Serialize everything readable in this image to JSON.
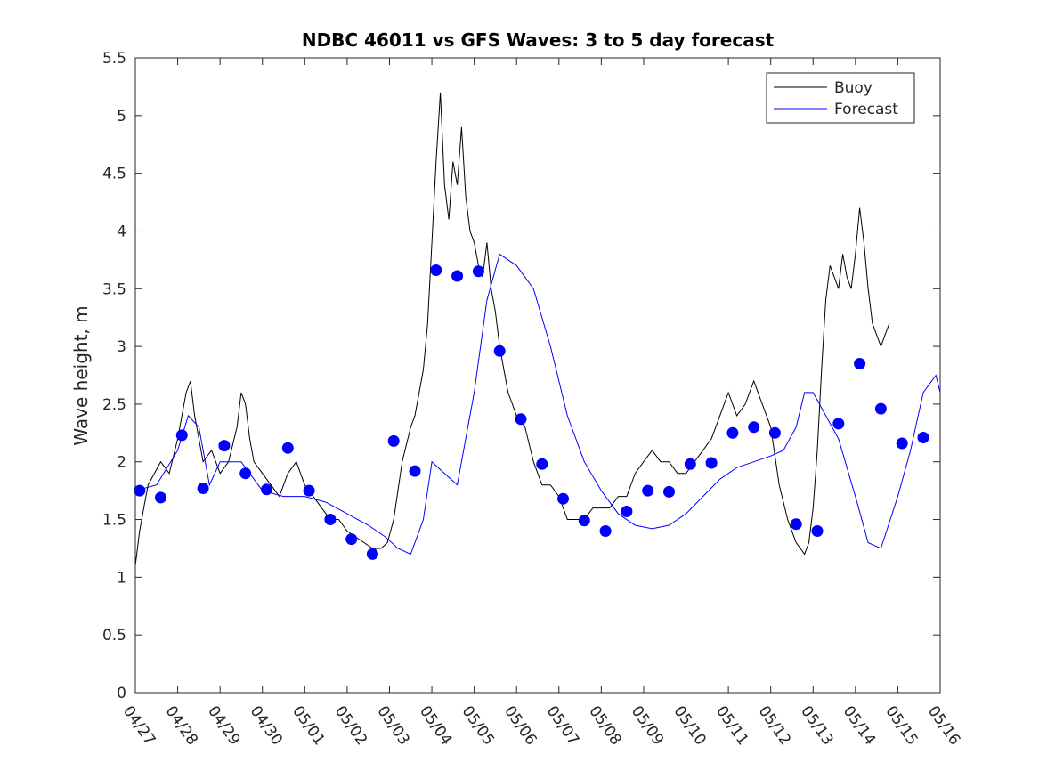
{
  "colors": {
    "buoy": "#000000",
    "forecast": "#0000ff",
    "axes": "#262626",
    "background": "#ffffff"
  },
  "chart_data": {
    "type": "line",
    "title": "NDBC 46011 vs GFS Waves: 3 to 5 day forecast",
    "xlabel": "",
    "ylabel": "Wave height, m",
    "xlim": [
      "04/27",
      "05/16"
    ],
    "ylim": [
      0,
      5.5
    ],
    "y_ticks": [
      "0",
      "0.5",
      "1",
      "1.5",
      "2",
      "2.5",
      "3",
      "3.5",
      "4",
      "4.5",
      "5",
      "5.5"
    ],
    "x_ticks": [
      "04/27",
      "04/28",
      "04/29",
      "04/30",
      "05/01",
      "05/02",
      "05/03",
      "05/04",
      "05/05",
      "05/06",
      "05/07",
      "05/08",
      "05/09",
      "05/10",
      "05/11",
      "05/12",
      "05/13",
      "05/14",
      "05/15",
      "05/16"
    ],
    "x_units": "days since 04/27 00:00",
    "grid": false,
    "legend": {
      "placement": "top-right",
      "entries": [
        "Buoy",
        "Forecast"
      ]
    },
    "series": [
      {
        "name": "Buoy",
        "style": "line",
        "x": [
          0,
          0.1,
          0.2,
          0.3,
          0.45,
          0.6,
          0.8,
          1.0,
          1.1,
          1.2,
          1.3,
          1.4,
          1.5,
          1.6,
          1.8,
          2.0,
          2.2,
          2.4,
          2.5,
          2.6,
          2.7,
          2.8,
          3.0,
          3.2,
          3.4,
          3.6,
          3.8,
          4.0,
          4.2,
          4.4,
          4.6,
          4.8,
          5.0,
          5.2,
          5.4,
          5.6,
          5.8,
          5.95,
          6.1,
          6.3,
          6.5,
          6.6,
          6.7,
          6.8,
          6.9,
          7.0,
          7.1,
          7.2,
          7.3,
          7.4,
          7.5,
          7.6,
          7.7,
          7.8,
          7.9,
          8.0,
          8.1,
          8.2,
          8.3,
          8.4,
          8.5,
          8.6,
          8.7,
          8.8,
          9.0,
          9.2,
          9.4,
          9.6,
          9.8,
          10.0,
          10.2,
          10.4,
          10.6,
          10.8,
          11.0,
          11.2,
          11.4,
          11.6,
          11.8,
          12.0,
          12.2,
          12.4,
          12.6,
          12.8,
          13.0,
          13.2,
          13.4,
          13.6,
          13.8,
          14.0,
          14.2,
          14.4,
          14.6,
          14.8,
          15.0,
          15.2,
          15.4,
          15.6,
          15.8,
          15.9,
          16.0,
          16.1,
          16.2,
          16.3,
          16.4,
          16.5,
          16.6,
          16.7,
          16.8,
          16.9,
          17.0,
          17.1,
          17.2,
          17.3,
          17.4,
          17.5,
          17.6,
          17.7,
          17.8
        ],
        "y": [
          1.1,
          1.4,
          1.6,
          1.8,
          1.9,
          2.0,
          1.9,
          2.2,
          2.4,
          2.6,
          2.7,
          2.4,
          2.2,
          2.0,
          2.1,
          1.9,
          2.0,
          2.3,
          2.6,
          2.5,
          2.2,
          2.0,
          1.9,
          1.8,
          1.7,
          1.9,
          2.0,
          1.8,
          1.7,
          1.6,
          1.5,
          1.5,
          1.4,
          1.35,
          1.3,
          1.25,
          1.25,
          1.3,
          1.5,
          2.0,
          2.3,
          2.4,
          2.6,
          2.8,
          3.2,
          3.9,
          4.6,
          5.2,
          4.4,
          4.1,
          4.6,
          4.4,
          4.9,
          4.3,
          4.0,
          3.9,
          3.7,
          3.6,
          3.9,
          3.5,
          3.3,
          3.0,
          2.8,
          2.6,
          2.4,
          2.3,
          2.0,
          1.8,
          1.8,
          1.7,
          1.5,
          1.5,
          1.5,
          1.6,
          1.6,
          1.6,
          1.7,
          1.7,
          1.9,
          2.0,
          2.1,
          2.0,
          2.0,
          1.9,
          1.9,
          2.0,
          2.1,
          2.2,
          2.4,
          2.6,
          2.4,
          2.5,
          2.7,
          2.5,
          2.3,
          1.8,
          1.5,
          1.3,
          1.2,
          1.3,
          1.6,
          2.1,
          2.8,
          3.4,
          3.7,
          3.6,
          3.5,
          3.8,
          3.6,
          3.5,
          3.8,
          4.2,
          3.9,
          3.5,
          3.2,
          3.1,
          3.0,
          3.1,
          3.2
        ]
      },
      {
        "name": "Forecast",
        "style": "line",
        "x": [
          0,
          0.5,
          1.0,
          1.25,
          1.5,
          1.75,
          2.0,
          2.5,
          3.0,
          3.5,
          4.0,
          4.5,
          5.0,
          5.5,
          5.9,
          6.2,
          6.5,
          6.8,
          7.0,
          7.3,
          7.6,
          8.0,
          8.3,
          8.6,
          9.0,
          9.4,
          9.8,
          10.2,
          10.6,
          11.0,
          11.4,
          11.8,
          12.2,
          12.6,
          13.0,
          13.4,
          13.8,
          14.2,
          14.6,
          15.0,
          15.3,
          15.6,
          15.8,
          16.0,
          16.3,
          16.6,
          17.0,
          17.3,
          17.6,
          18.0,
          18.3,
          18.6,
          18.9,
          19.0
        ],
        "y": [
          1.75,
          1.8,
          2.1,
          2.4,
          2.3,
          1.8,
          2.0,
          2.0,
          1.75,
          1.7,
          1.7,
          1.65,
          1.55,
          1.45,
          1.35,
          1.25,
          1.2,
          1.5,
          2.0,
          1.9,
          1.8,
          2.6,
          3.4,
          3.8,
          3.7,
          3.5,
          3.0,
          2.4,
          2.0,
          1.75,
          1.55,
          1.45,
          1.42,
          1.45,
          1.55,
          1.7,
          1.85,
          1.95,
          2.0,
          2.05,
          2.1,
          2.3,
          2.6,
          2.6,
          2.4,
          2.2,
          1.7,
          1.3,
          1.25,
          1.7,
          2.1,
          2.6,
          2.75,
          2.6
        ]
      },
      {
        "name": "Forecast",
        "style": "markers",
        "x": [
          0.1,
          0.6,
          1.1,
          1.6,
          2.1,
          2.6,
          3.1,
          3.6,
          4.1,
          4.6,
          5.1,
          5.6,
          6.1,
          6.6,
          7.1,
          7.6,
          8.1,
          8.6,
          9.1,
          9.6,
          10.1,
          10.6,
          11.1,
          11.6,
          12.1,
          12.6,
          13.1,
          13.6,
          14.1,
          14.6,
          15.1,
          15.6,
          16.1,
          16.6,
          17.1,
          17.6,
          18.1,
          18.6
        ],
        "y": [
          1.75,
          1.69,
          2.23,
          1.77,
          2.14,
          1.9,
          1.76,
          2.12,
          1.75,
          1.5,
          1.33,
          1.2,
          2.18,
          1.92,
          3.66,
          3.61,
          3.65,
          2.96,
          2.37,
          1.98,
          1.68,
          1.49,
          1.4,
          1.57,
          1.75,
          1.74,
          1.98,
          1.99,
          2.25,
          2.3,
          2.25,
          1.46,
          1.4,
          2.33,
          2.85,
          2.46,
          2.16,
          2.21
        ]
      }
    ]
  }
}
